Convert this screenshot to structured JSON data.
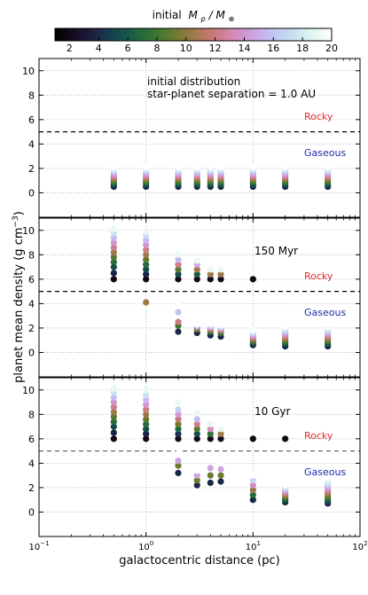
{
  "chart_data": {
    "type": "scatter",
    "colorbar": {
      "title": "initial",
      "title_math": "M_p/M_⊕",
      "title_base": "M",
      "title_sub_p": "p",
      "title_slash": "/",
      "title_sub_earth": "⊕",
      "min": 1,
      "max": 20,
      "ticks": [
        "2",
        "4",
        "6",
        "8",
        "10",
        "12",
        "14",
        "16",
        "18",
        "20"
      ],
      "colormap": "cubehelix"
    },
    "xlabel": "galactocentric distance (pc)",
    "ylabel": "planet mean density (g cm⁻³)",
    "ylabel_main": "planet mean density (g cm",
    "ylabel_exp": "−3",
    "ylabel_close": ")",
    "xscale": "log",
    "xlim": [
      0.1,
      100
    ],
    "ylim": [
      -2,
      11
    ],
    "x_ticks": [
      {
        "base": "10",
        "exp": "−1"
      },
      {
        "base": "10",
        "exp": "0"
      },
      {
        "base": "10",
        "exp": "1"
      },
      {
        "base": "10",
        "exp": "2"
      }
    ],
    "y_ticks": [
      "0",
      "2",
      "4",
      "6",
      "8",
      "10"
    ],
    "threshold_density": 5,
    "grid": true,
    "distances": [
      0.5,
      1,
      2,
      3,
      4,
      5,
      10,
      20,
      50
    ],
    "panels": [
      {
        "label": "initial distribution",
        "label2": "star-planet separation =  1.0 AU",
        "rocky_label": "Rocky",
        "gaseous_label": "Gaseous",
        "columns": [
          {
            "x": 0.5,
            "values": [
              0.5,
              0.7,
              0.9,
              1.1,
              1.3,
              1.5,
              1.7,
              1.9,
              2.1
            ]
          },
          {
            "x": 1,
            "values": [
              0.5,
              0.7,
              0.9,
              1.1,
              1.3,
              1.5,
              1.7,
              1.9,
              2.1
            ]
          },
          {
            "x": 2,
            "values": [
              0.5,
              0.7,
              0.9,
              1.1,
              1.3,
              1.5,
              1.7,
              1.9,
              2.1
            ]
          },
          {
            "x": 3,
            "values": [
              0.5,
              0.7,
              0.9,
              1.1,
              1.3,
              1.5,
              1.7,
              1.9,
              2.1
            ]
          },
          {
            "x": 4,
            "values": [
              0.5,
              0.7,
              0.9,
              1.1,
              1.3,
              1.5,
              1.7,
              1.9,
              2.1
            ]
          },
          {
            "x": 5,
            "values": [
              0.5,
              0.7,
              0.9,
              1.1,
              1.3,
              1.5,
              1.7,
              1.9,
              2.1
            ]
          },
          {
            "x": 10,
            "values": [
              0.5,
              0.7,
              0.9,
              1.1,
              1.3,
              1.5,
              1.7,
              1.9,
              2.1
            ]
          },
          {
            "x": 20,
            "values": [
              0.5,
              0.7,
              0.9,
              1.1,
              1.3,
              1.5,
              1.7,
              1.9,
              2.1
            ]
          },
          {
            "x": 50,
            "values": [
              0.5,
              0.7,
              0.9,
              1.1,
              1.3,
              1.5,
              1.7,
              1.9,
              2.1
            ]
          }
        ]
      },
      {
        "label": "150 Myr",
        "label2": "",
        "rocky_label": "Rocky",
        "gaseous_label": "Gaseous",
        "columns": [
          {
            "x": 0.5,
            "values": [
              6.0,
              6.5,
              7.0,
              7.4,
              7.8,
              8.2,
              8.6,
              9.0,
              9.4,
              9.8,
              10.1
            ]
          },
          {
            "x": 1,
            "values": [
              4.1,
              6.0,
              6.4,
              6.8,
              7.2,
              7.6,
              8.0,
              8.4,
              8.8,
              9.2,
              9.6,
              9.9
            ]
          },
          {
            "x": 2,
            "values": [
              1.7,
              2.2,
              2.5,
              3.3,
              3.9,
              6.0,
              6.4,
              6.8,
              7.2,
              7.6,
              8.0
            ]
          },
          {
            "x": 3,
            "values": [
              1.6,
              1.9,
              2.1,
              2.3,
              6.0,
              6.4,
              6.8,
              7.2,
              7.5
            ]
          },
          {
            "x": 4,
            "values": [
              1.4,
              1.7,
              1.9,
              2.1,
              2.3,
              6.0,
              6.4,
              6.8
            ]
          },
          {
            "x": 5,
            "values": [
              1.3,
              1.6,
              1.8,
              2.0,
              2.2,
              6.0,
              6.4,
              6.8
            ]
          },
          {
            "x": 10,
            "values": [
              0.6,
              0.8,
              1.0,
              1.2,
              1.4,
              1.6,
              1.8,
              6.0
            ]
          },
          {
            "x": 20,
            "values": [
              0.5,
              0.7,
              0.9,
              1.1,
              1.3,
              1.5,
              1.7,
              1.9,
              2.1
            ]
          },
          {
            "x": 50,
            "values": [
              0.5,
              0.7,
              0.9,
              1.1,
              1.3,
              1.5,
              1.7,
              1.9,
              2.1
            ]
          }
        ]
      },
      {
        "label": "10 Gyr",
        "label2": "",
        "rocky_label": "Rocky",
        "gaseous_label": "Gaseous",
        "columns": [
          {
            "x": 0.5,
            "values": [
              6.0,
              6.5,
              7.0,
              7.4,
              7.8,
              8.2,
              8.6,
              9.0,
              9.4,
              9.8,
              10.1
            ]
          },
          {
            "x": 1,
            "values": [
              6.0,
              6.4,
              6.8,
              7.2,
              7.6,
              8.0,
              8.4,
              8.8,
              9.2,
              9.6,
              10.0
            ]
          },
          {
            "x": 2,
            "values": [
              3.2,
              3.8,
              4.2,
              4.8,
              6.0,
              6.4,
              6.8,
              7.2,
              7.6,
              8.0,
              8.4,
              9.0
            ]
          },
          {
            "x": 3,
            "values": [
              2.2,
              2.6,
              3.0,
              3.4,
              6.0,
              6.4,
              6.8,
              7.2,
              7.6,
              8.1
            ]
          },
          {
            "x": 4,
            "values": [
              2.4,
              3.0,
              3.6,
              4.4,
              6.0,
              6.4,
              6.8,
              7.2
            ]
          },
          {
            "x": 5,
            "values": [
              2.5,
              3.0,
              3.5,
              4.0,
              6.0,
              6.4,
              6.8
            ]
          },
          {
            "x": 10,
            "values": [
              1.0,
              1.4,
              1.8,
              2.2,
              2.6,
              3.0,
              6.0
            ]
          },
          {
            "x": 20,
            "values": [
              0.8,
              1.0,
              1.2,
              1.4,
              1.6,
              1.8,
              2.0,
              2.2,
              6.0
            ]
          },
          {
            "x": 50,
            "values": [
              0.7,
              0.9,
              1.1,
              1.3,
              1.5,
              1.7,
              1.9,
              2.1,
              2.3,
              2.5,
              2.8
            ]
          }
        ]
      }
    ]
  }
}
